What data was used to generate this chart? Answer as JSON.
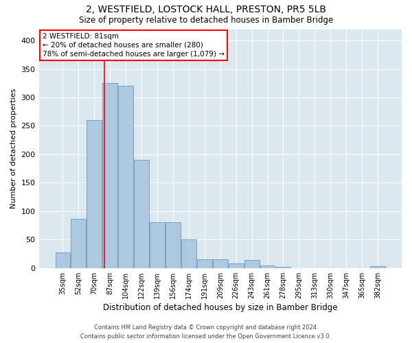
{
  "title": "2, WESTFIELD, LOSTOCK HALL, PRESTON, PR5 5LB",
  "subtitle": "Size of property relative to detached houses in Bamber Bridge",
  "xlabel": "Distribution of detached houses by size in Bamber Bridge",
  "ylabel": "Number of detached properties",
  "bar_color": "#aec8e0",
  "bar_edge_color": "#6699bb",
  "bg_color": "#dce8f0",
  "categories": [
    "35sqm",
    "52sqm",
    "70sqm",
    "87sqm",
    "104sqm",
    "122sqm",
    "139sqm",
    "156sqm",
    "174sqm",
    "191sqm",
    "209sqm",
    "226sqm",
    "243sqm",
    "261sqm",
    "278sqm",
    "295sqm",
    "313sqm",
    "330sqm",
    "347sqm",
    "365sqm",
    "382sqm"
  ],
  "values": [
    27,
    87,
    260,
    325,
    320,
    190,
    80,
    80,
    50,
    15,
    15,
    8,
    14,
    5,
    2,
    0,
    0,
    0,
    0,
    0,
    3
  ],
  "ylim": [
    0,
    420
  ],
  "yticks": [
    0,
    50,
    100,
    150,
    200,
    250,
    300,
    350,
    400
  ],
  "property_label": "2 WESTFIELD: 81sqm",
  "annotation_line1": "← 20% of detached houses are smaller (280)",
  "annotation_line2": "78% of semi-detached houses are larger (1,079) →",
  "vline_x": 2.65,
  "footer_line1": "Contains HM Land Registry data © Crown copyright and database right 2024.",
  "footer_line2": "Contains public sector information licensed under the Open Government Licence v3.0."
}
